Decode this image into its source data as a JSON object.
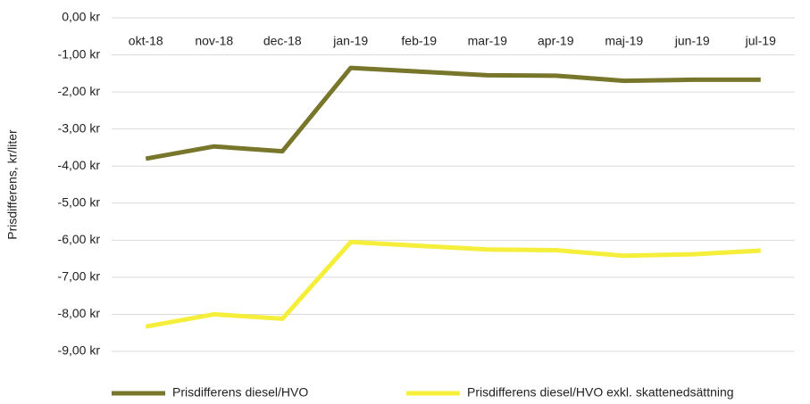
{
  "chart_data": {
    "type": "line",
    "y_label": "Prisdifferens, kr/liter",
    "categories": [
      "okt-18",
      "nov-18",
      "dec-18",
      "jan-19",
      "feb-19",
      "mar-19",
      "apr-19",
      "maj-19",
      "jun-19",
      "jul-19"
    ],
    "series": [
      {
        "name": "Prisdifferens diesel/HVO",
        "color": "#77762b",
        "values": [
          -3.8,
          -3.47,
          -3.6,
          -1.35,
          -1.45,
          -1.55,
          -1.56,
          -1.7,
          -1.67,
          -1.67
        ]
      },
      {
        "name": "Prisdifferens diesel/HVO exkl. skattenedsättning",
        "color": "#f5ee3a",
        "values": [
          -8.33,
          -8.0,
          -8.12,
          -6.05,
          -6.15,
          -6.25,
          -6.27,
          -6.42,
          -6.38,
          -6.28
        ]
      }
    ],
    "ylim": [
      -9,
      0
    ],
    "yticks": [
      {
        "value": 0,
        "label": "0,00 kr"
      },
      {
        "value": -1,
        "label": "-1,00 kr"
      },
      {
        "value": -2,
        "label": "-2,00 kr"
      },
      {
        "value": -3,
        "label": "-3,00 kr"
      },
      {
        "value": -4,
        "label": "-4,00 kr"
      },
      {
        "value": -5,
        "label": "-5,00 kr"
      },
      {
        "value": -6,
        "label": "-6,00 kr"
      },
      {
        "value": -7,
        "label": "-7,00 kr"
      },
      {
        "value": -8,
        "label": "-8,00 kr"
      },
      {
        "value": -9,
        "label": "-9,00 kr"
      }
    ],
    "grid": true,
    "legend": "bottom"
  }
}
